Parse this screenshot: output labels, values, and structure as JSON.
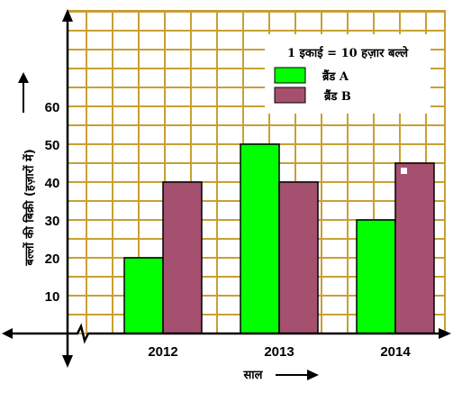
{
  "chart_data": {
    "type": "bar",
    "categories": [
      "2012",
      "2013",
      "2014"
    ],
    "series": [
      {
        "name": "ब्रैंड A",
        "values": [
          20,
          50,
          30
        ],
        "color": "#00ff00"
      },
      {
        "name": "ब्रैंड B",
        "values": [
          40,
          40,
          45
        ],
        "color": "#a5506f"
      }
    ],
    "xlabel": "साल",
    "ylabel": "बल्लों की बिक्री (हज़ारों में)",
    "yticks": [
      10,
      20,
      30,
      40,
      50,
      60
    ],
    "ylim": [
      0,
      60
    ],
    "note": "1 इकाई = 10 हज़ार बल्ले",
    "legend_position": "top-right",
    "grid": true,
    "grid_color": "#c8a032"
  }
}
